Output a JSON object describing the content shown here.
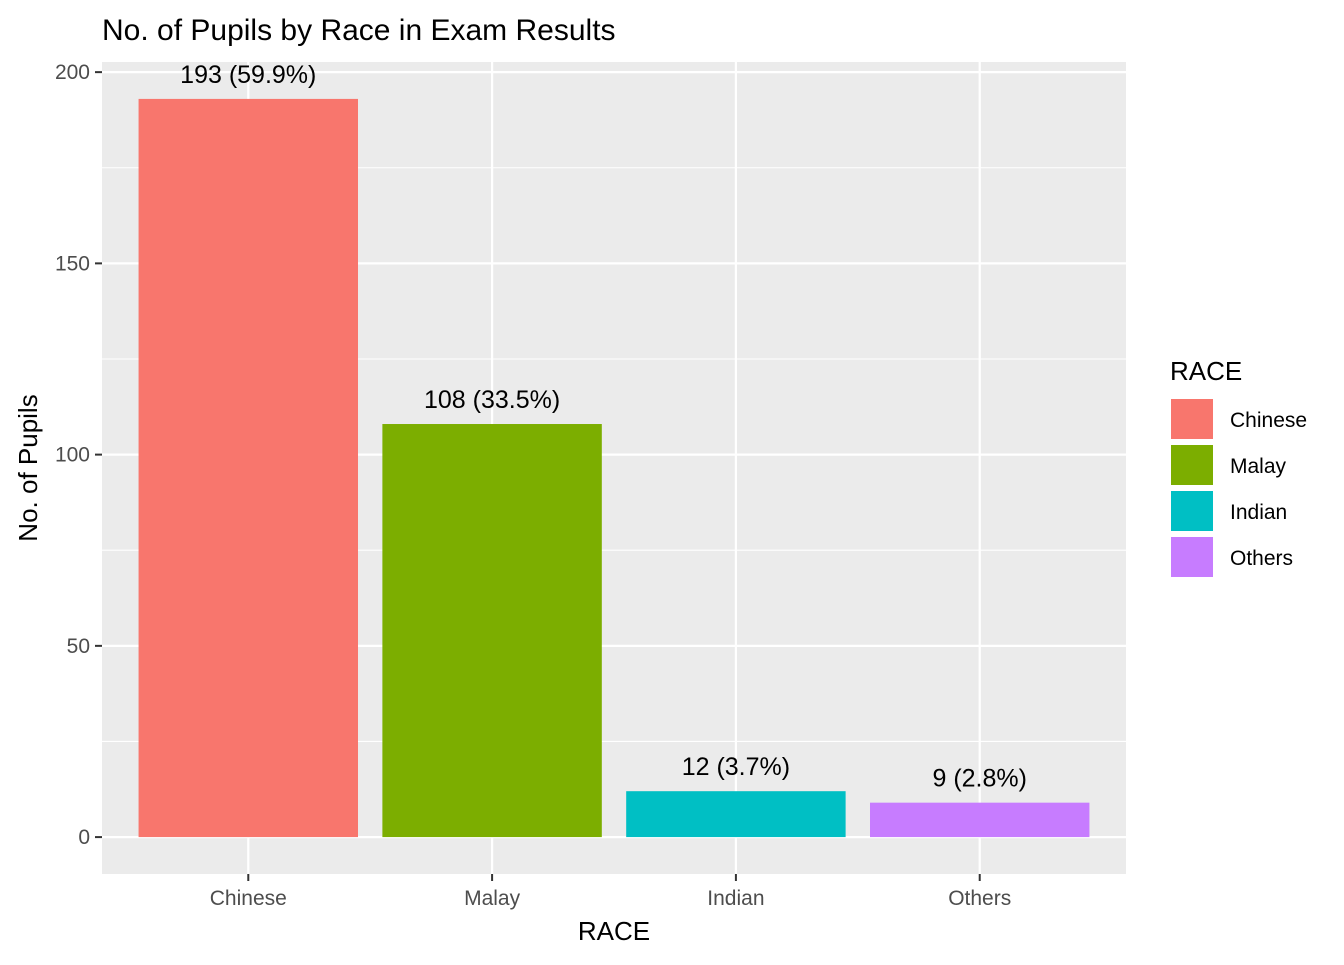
{
  "chart_data": {
    "type": "bar",
    "title": "No. of Pupils by Race in Exam Results",
    "xlabel": "RACE",
    "ylabel": "No. of Pupils",
    "categories": [
      "Chinese",
      "Malay",
      "Indian",
      "Others"
    ],
    "values": [
      193,
      108,
      12,
      9
    ],
    "data_labels": [
      "193 (59.9%)",
      "108 (33.5%)",
      "12 (3.7%)",
      "9 (2.8%)"
    ],
    "colors": [
      "#F8766D",
      "#7CAE00",
      "#00BFC4",
      "#C77CFF"
    ],
    "ylim": [
      -9.65,
      202.65
    ],
    "y_ticks": [
      0,
      50,
      100,
      150,
      200
    ],
    "y_tick_labels": [
      "0",
      "50",
      "100",
      "150",
      "200"
    ],
    "grid": true,
    "legend": {
      "title": "RACE",
      "placement": "right",
      "entries": [
        "Chinese",
        "Malay",
        "Indian",
        "Others"
      ]
    },
    "panel_background": "#EBEBEB",
    "grid_color": "#FFFFFF"
  }
}
